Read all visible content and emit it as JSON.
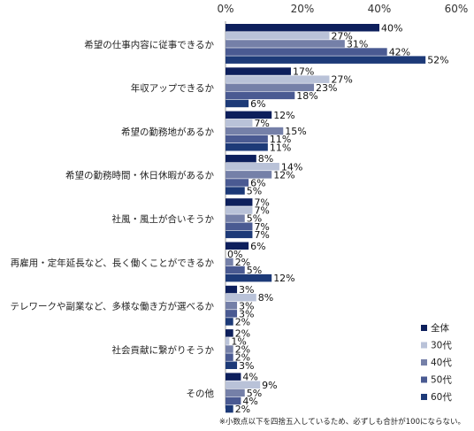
{
  "chart_data": {
    "type": "bar",
    "orientation": "horizontal",
    "categories": [
      "希望の仕事内容に従事できるか",
      "年収アップできるか",
      "希望の勤務地があるか",
      "希望の勤務時間・休日休暇があるか",
      "社風・風土が合いそうか",
      "再雇用・定年延長など、長く働くことができるか",
      "テレワークや副業など、多様な働き方が選べるか",
      "社会貢献に繋がりそうか",
      "その他"
    ],
    "series": [
      {
        "name": "全体",
        "color": "#0d1f5c",
        "values": [
          40,
          17,
          12,
          8,
          7,
          6,
          3,
          2,
          4
        ]
      },
      {
        "name": "30代",
        "color": "#b9c2d8",
        "values": [
          27,
          27,
          7,
          14,
          7,
          0,
          8,
          1,
          9
        ]
      },
      {
        "name": "40代",
        "color": "#7580a8",
        "values": [
          31,
          23,
          15,
          12,
          5,
          2,
          3,
          2,
          5
        ]
      },
      {
        "name": "50代",
        "color": "#4a5a92",
        "values": [
          42,
          18,
          11,
          6,
          7,
          5,
          3,
          2,
          4
        ]
      },
      {
        "name": "60代",
        "color": "#1d3a78",
        "values": [
          52,
          6,
          11,
          5,
          7,
          12,
          2,
          3,
          2
        ]
      }
    ],
    "value_suffix": "%",
    "x_ticks": [
      "0%",
      "20%",
      "40%",
      "60%"
    ],
    "xlim": [
      0,
      60
    ],
    "grid": false,
    "legend_position": "bottom-right",
    "footnote": "※小数点以下を四捨五入しているため、必ずしも合計が100にならない。"
  }
}
